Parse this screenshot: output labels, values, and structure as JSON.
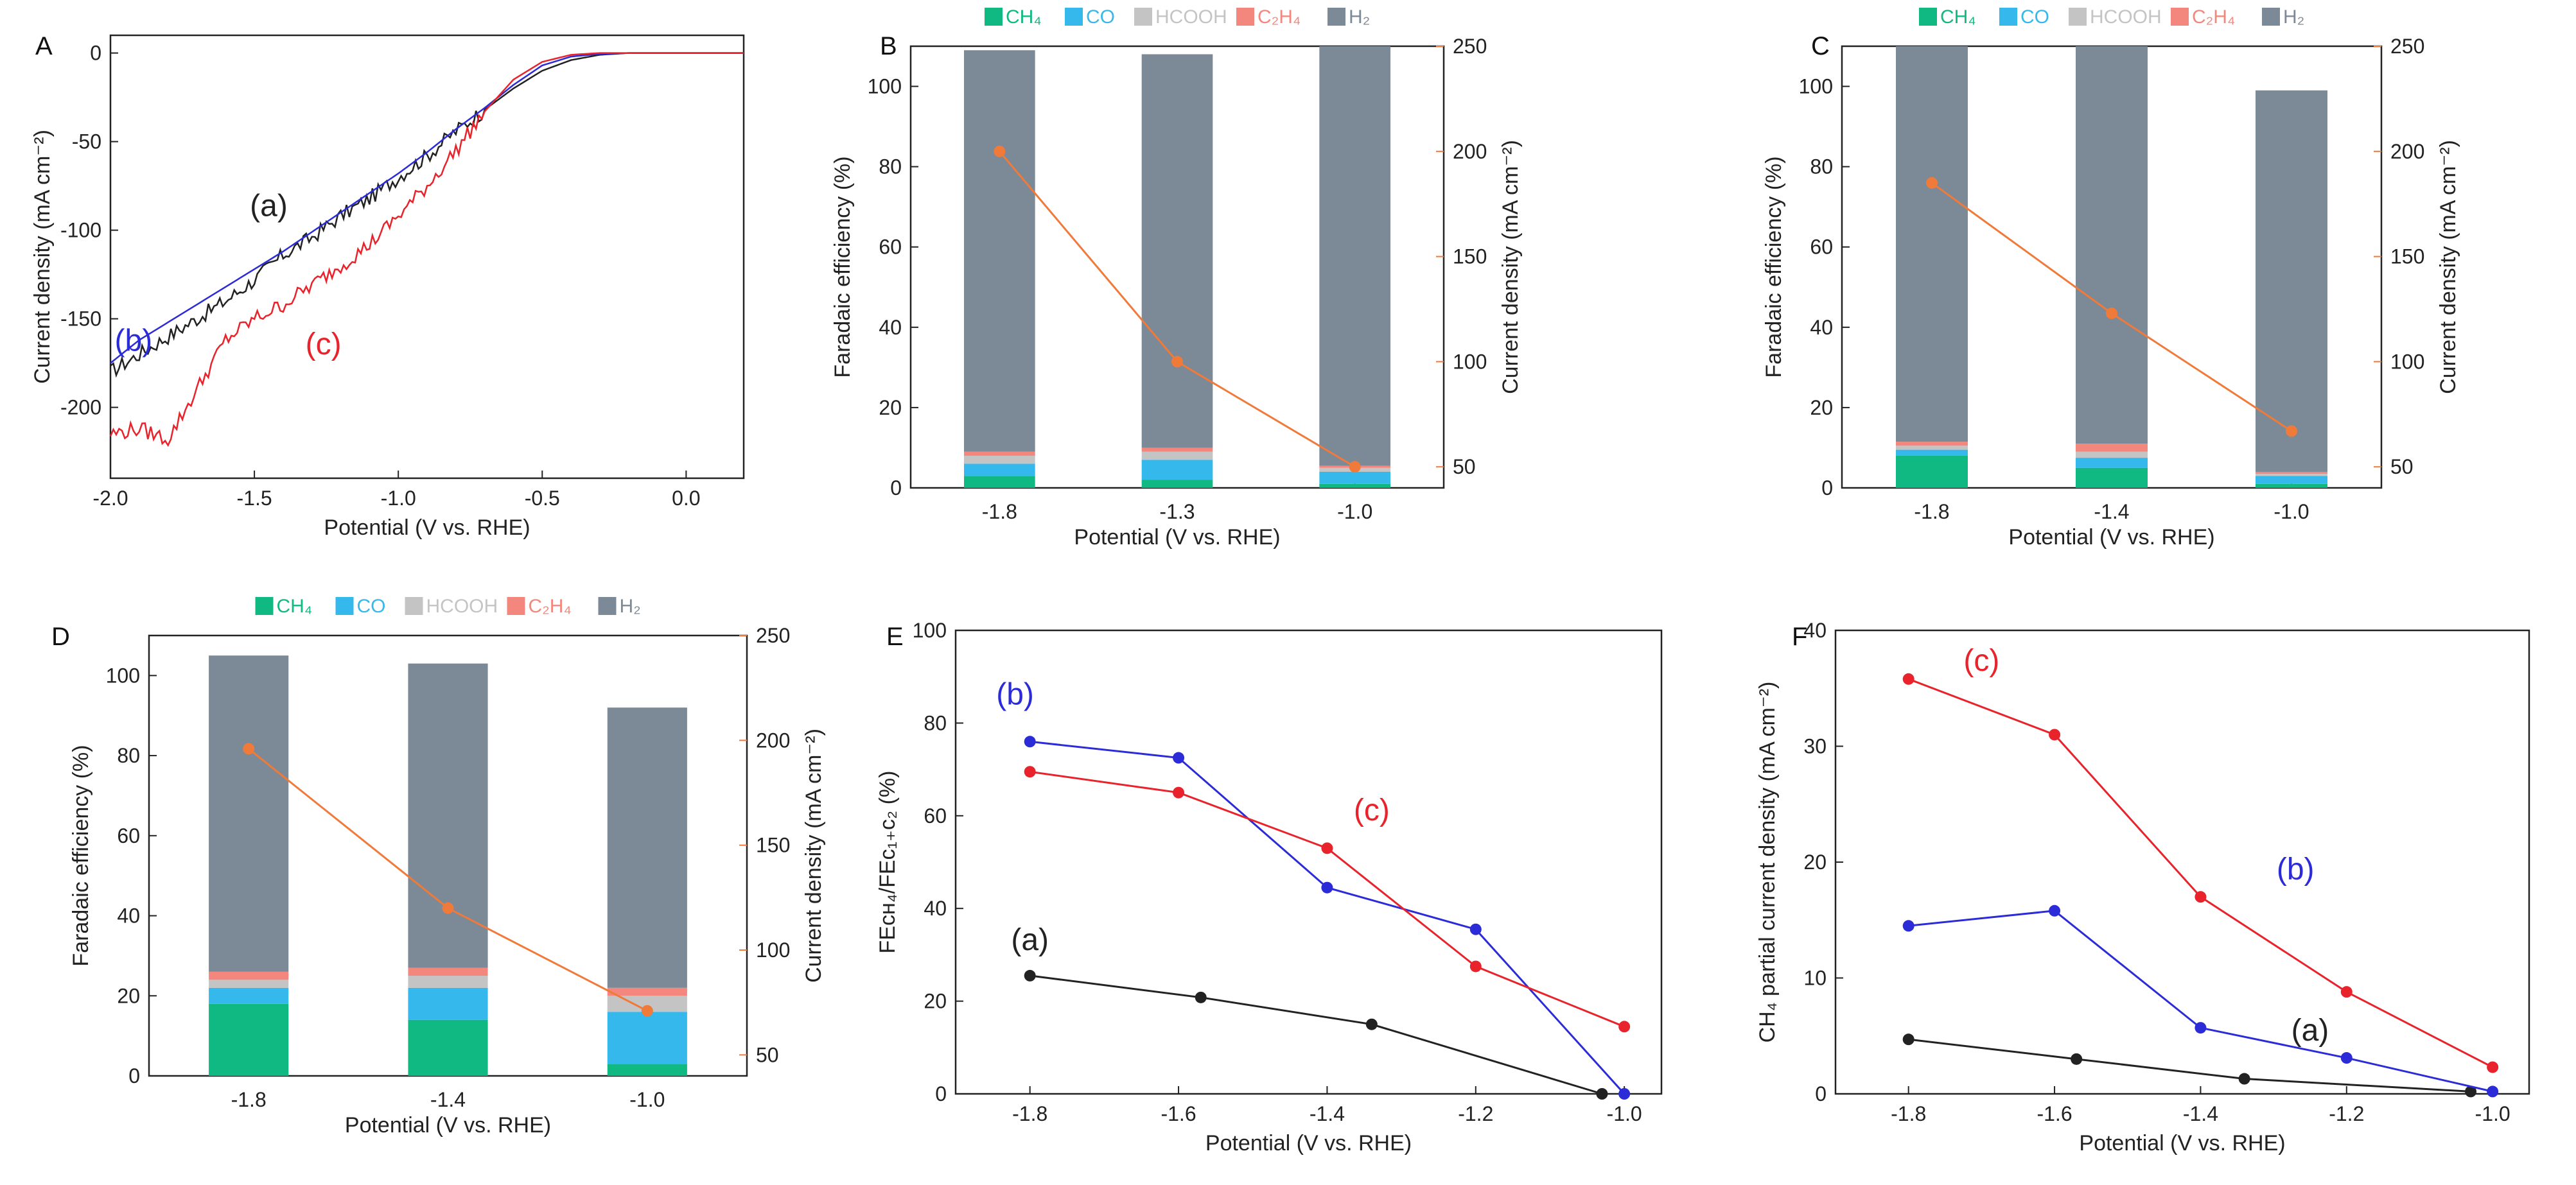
{
  "colors": {
    "black": "#222222",
    "blue": "#2b2bd8",
    "red": "#e8232b",
    "orange": "#f07a3a",
    "CH4": "#10b981",
    "CO": "#35b8ec",
    "HCOOH": "#c4c4c4",
    "C2H4": "#f3877e",
    "H2": "#7c8996"
  },
  "chart_data": [
    {
      "id": "A",
      "panel_label": "A",
      "type": "line",
      "xlabel": "Potential (V vs. RHE)",
      "ylabel": "Current density (mA cm⁻²)",
      "xlim": [
        -2.0,
        0.2
      ],
      "ylim": [
        -240,
        10
      ],
      "xticks": [
        -2.0,
        -1.5,
        -1.0,
        -0.5,
        0.0
      ],
      "xtick_labels": [
        "-2.0",
        "-1.5",
        "-1.0",
        "-0.5",
        "0.0"
      ],
      "yticks": [
        0,
        -50,
        -100,
        -150,
        -200
      ],
      "ytick_labels": [
        "0",
        "-50",
        "-100",
        "-150",
        "-200"
      ],
      "series": [
        {
          "name": "(a)",
          "color": "#222222",
          "noisy": true,
          "x": [
            -2.0,
            -1.9,
            -1.8,
            -1.7,
            -1.6,
            -1.5,
            -1.4,
            -1.3,
            -1.2,
            -1.1,
            -1.0,
            -0.9,
            -0.8,
            -0.7,
            -0.6,
            -0.5,
            -0.4,
            -0.3,
            -0.2,
            -0.1,
            0.0,
            0.2
          ],
          "y": [
            -180,
            -170,
            -160,
            -150,
            -140,
            -128,
            -114,
            -104,
            -92,
            -82,
            -70,
            -58,
            -44,
            -32,
            -20,
            -10,
            -4,
            -1,
            0,
            0,
            0,
            0
          ]
        },
        {
          "name": "(b)",
          "color": "#2b2bd8",
          "noisy": false,
          "x": [
            -2.0,
            -1.9,
            -1.8,
            -1.7,
            -1.6,
            -1.5,
            -1.4,
            -1.3,
            -1.2,
            -1.1,
            -1.0,
            -0.9,
            -0.8,
            -0.7,
            -0.6,
            -0.5,
            -0.4,
            -0.3,
            -0.2,
            -0.1,
            0.0,
            0.2
          ],
          "y": [
            -175,
            -162,
            -152,
            -142,
            -132,
            -122,
            -112,
            -101,
            -90,
            -79,
            -68,
            -56,
            -43,
            -31,
            -18,
            -7,
            -2,
            -0.5,
            0,
            0,
            0,
            0
          ]
        },
        {
          "name": "(c)",
          "color": "#e8232b",
          "noisy": true,
          "x": [
            -2.0,
            -1.9,
            -1.8,
            -1.7,
            -1.6,
            -1.5,
            -1.4,
            -1.3,
            -1.2,
            -1.1,
            -1.0,
            -0.9,
            -0.8,
            -0.7,
            -0.6,
            -0.5,
            -0.4,
            -0.3,
            -0.2,
            -0.1,
            0.0,
            0.2
          ],
          "y": [
            -215,
            -212,
            -218,
            -190,
            -162,
            -150,
            -142,
            -131,
            -120,
            -108,
            -92,
            -75,
            -55,
            -33,
            -15,
            -5,
            -1,
            0,
            0,
            0,
            0,
            0
          ]
        }
      ],
      "annotations": [
        {
          "text": "(a)",
          "x": -1.45,
          "y": -92,
          "color": "#222222"
        },
        {
          "text": "(b)",
          "x": -1.92,
          "y": -168,
          "color": "#2b2bd8"
        },
        {
          "text": "(c)",
          "x": -1.26,
          "y": -170,
          "color": "#e8232b"
        }
      ]
    },
    {
      "id": "B",
      "panel_label": "B",
      "type": "bar",
      "xlabel": "Potential (V vs. RHE)",
      "ylabel": "Faradaic efficiency (%)",
      "y2label": "Current density (mA cm⁻²)",
      "categories": [
        "-1.8",
        "-1.3",
        "-1.0"
      ],
      "ylim": [
        0,
        110
      ],
      "yticks": [
        0,
        20,
        40,
        60,
        80,
        100
      ],
      "ytick_labels": [
        "0",
        "20",
        "40",
        "60",
        "80",
        "100"
      ],
      "y2lim": [
        40,
        250
      ],
      "y2ticks": [
        50,
        100,
        150,
        200,
        250
      ],
      "y2tick_labels": [
        "50",
        "100",
        "150",
        "200",
        "250"
      ],
      "legend": [
        "CH₄",
        "CO",
        "HCOOH",
        "C₂H₄",
        "H₂"
      ],
      "stacks": [
        {
          "name": "CH₄",
          "values": [
            3,
            2,
            1
          ]
        },
        {
          "name": "CO",
          "values": [
            3,
            5,
            3
          ]
        },
        {
          "name": "HCOOH",
          "values": [
            2,
            2,
            1
          ]
        },
        {
          "name": "C₂H₄",
          "values": [
            1,
            1,
            0.5
          ]
        },
        {
          "name": "H₂",
          "values": [
            100,
            98,
            104.5
          ]
        }
      ],
      "line": {
        "name": "Current density",
        "values": [
          200,
          100,
          50
        ]
      }
    },
    {
      "id": "C",
      "panel_label": "C",
      "type": "bar",
      "xlabel": "Potential (V vs. RHE)",
      "ylabel": "Faradaic efficiency (%)",
      "y2label": "Current density (mA cm⁻²)",
      "categories": [
        "-1.8",
        "-1.4",
        "-1.0"
      ],
      "ylim": [
        0,
        110
      ],
      "yticks": [
        0,
        20,
        40,
        60,
        80,
        100
      ],
      "ytick_labels": [
        "0",
        "20",
        "40",
        "60",
        "80",
        "100"
      ],
      "y2lim": [
        40,
        250
      ],
      "y2ticks": [
        50,
        100,
        150,
        200,
        250
      ],
      "y2tick_labels": [
        "50",
        "100",
        "150",
        "200",
        "250"
      ],
      "legend": [
        "CH₄",
        "CO",
        "HCOOH",
        "C₂H₄",
        "H₂"
      ],
      "stacks": [
        {
          "name": "CH₄",
          "values": [
            8,
            5,
            1
          ]
        },
        {
          "name": "CO",
          "values": [
            1.5,
            2.5,
            2
          ]
        },
        {
          "name": "HCOOH",
          "values": [
            1,
            1.5,
            0.5
          ]
        },
        {
          "name": "C₂H₄",
          "values": [
            1,
            2,
            0.5
          ]
        },
        {
          "name": "H₂",
          "values": [
            98.5,
            101,
            95
          ]
        }
      ],
      "line": {
        "name": "Current density",
        "values": [
          185,
          123,
          67
        ]
      }
    },
    {
      "id": "D",
      "panel_label": "D",
      "type": "bar",
      "xlabel": "Potential (V vs. RHE)",
      "ylabel": "Faradaic efficiency (%)",
      "y2label": "Current density (mA cm⁻²)",
      "categories": [
        "-1.8",
        "-1.4",
        "-1.0"
      ],
      "ylim": [
        0,
        110
      ],
      "yticks": [
        0,
        20,
        40,
        60,
        80,
        100
      ],
      "ytick_labels": [
        "0",
        "20",
        "40",
        "60",
        "80",
        "100"
      ],
      "y2lim": [
        40,
        250
      ],
      "y2ticks": [
        50,
        100,
        150,
        200,
        250
      ],
      "y2tick_labels": [
        "50",
        "100",
        "150",
        "200",
        "250"
      ],
      "legend": [
        "CH₄",
        "CO",
        "HCOOH",
        "C₂H₄",
        "H₂"
      ],
      "stacks": [
        {
          "name": "CH₄",
          "values": [
            18,
            14,
            3
          ]
        },
        {
          "name": "CO",
          "values": [
            4,
            8,
            13
          ]
        },
        {
          "name": "HCOOH",
          "values": [
            2,
            3,
            4
          ]
        },
        {
          "name": "C₂H₄",
          "values": [
            2,
            2,
            2
          ]
        },
        {
          "name": "H₂",
          "values": [
            79,
            76,
            70
          ]
        }
      ],
      "line": {
        "name": "Current density",
        "values": [
          196,
          120,
          71
        ]
      }
    },
    {
      "id": "E",
      "panel_label": "E",
      "type": "line",
      "xlabel": "Potential (V vs. RHE)",
      "ylabel": "FEᴄʜ₄/FEᴄ₁₊ᴄ₂ (%)",
      "xlim": [
        -1.9,
        -0.95
      ],
      "ylim": [
        0,
        100
      ],
      "xticks": [
        -1.8,
        -1.6,
        -1.4,
        -1.2,
        -1.0
      ],
      "xtick_labels": [
        "-1.8",
        "-1.6",
        "-1.4",
        "-1.2",
        "-1.0"
      ],
      "yticks": [
        0,
        20,
        40,
        60,
        80,
        100
      ],
      "ytick_labels": [
        "0",
        "20",
        "40",
        "60",
        "80",
        "100"
      ],
      "series": [
        {
          "name": "(a)",
          "color": "#222222",
          "x": [
            -1.8,
            -1.57,
            -1.34,
            -1.03
          ],
          "y": [
            25.5,
            20.8,
            15,
            0
          ]
        },
        {
          "name": "(b)",
          "color": "#2b2bd8",
          "x": [
            -1.8,
            -1.6,
            -1.4,
            -1.2,
            -1.0
          ],
          "y": [
            76,
            72.5,
            44.5,
            35.5,
            0
          ]
        },
        {
          "name": "(c)",
          "color": "#e8232b",
          "x": [
            -1.8,
            -1.6,
            -1.4,
            -1.2,
            -1.0
          ],
          "y": [
            69.5,
            65,
            53,
            27.5,
            14.5
          ]
        }
      ],
      "annotations": [
        {
          "text": "(a)",
          "x": -1.8,
          "y": 31,
          "color": "#222222"
        },
        {
          "text": "(b)",
          "x": -1.82,
          "y": 84,
          "color": "#2b2bd8"
        },
        {
          "text": "(c)",
          "x": -1.34,
          "y": 59,
          "color": "#e8232b"
        }
      ]
    },
    {
      "id": "F",
      "panel_label": "F",
      "type": "line",
      "xlabel": "Potential (V vs. RHE)",
      "ylabel": "CH₄ partial current density (mA cm⁻²)",
      "xlim": [
        -1.9,
        -0.95
      ],
      "ylim": [
        0,
        40
      ],
      "xticks": [
        -1.8,
        -1.6,
        -1.4,
        -1.2,
        -1.0
      ],
      "xtick_labels": [
        "-1.8",
        "-1.6",
        "-1.4",
        "-1.2",
        "-1.0"
      ],
      "yticks": [
        0,
        10,
        20,
        30,
        40
      ],
      "ytick_labels": [
        "0",
        "10",
        "20",
        "30",
        "40"
      ],
      "series": [
        {
          "name": "(a)",
          "color": "#222222",
          "x": [
            -1.8,
            -1.57,
            -1.34,
            -1.03
          ],
          "y": [
            4.7,
            3,
            1.3,
            0.2
          ]
        },
        {
          "name": "(b)",
          "color": "#2b2bd8",
          "x": [
            -1.8,
            -1.6,
            -1.4,
            -1.2,
            -1.0
          ],
          "y": [
            14.5,
            15.8,
            5.7,
            3.1,
            0.2
          ]
        },
        {
          "name": "(c)",
          "color": "#e8232b",
          "x": [
            -1.8,
            -1.6,
            -1.4,
            -1.2,
            -1.0
          ],
          "y": [
            35.8,
            31,
            17,
            8.8,
            2.3
          ]
        }
      ],
      "annotations": [
        {
          "text": "(a)",
          "x": -1.25,
          "y": 4.6,
          "color": "#222222"
        },
        {
          "text": "(b)",
          "x": -1.27,
          "y": 18.5,
          "color": "#2b2bd8"
        },
        {
          "text": "(c)",
          "x": -1.7,
          "y": 36.5,
          "color": "#e8232b"
        }
      ]
    }
  ]
}
